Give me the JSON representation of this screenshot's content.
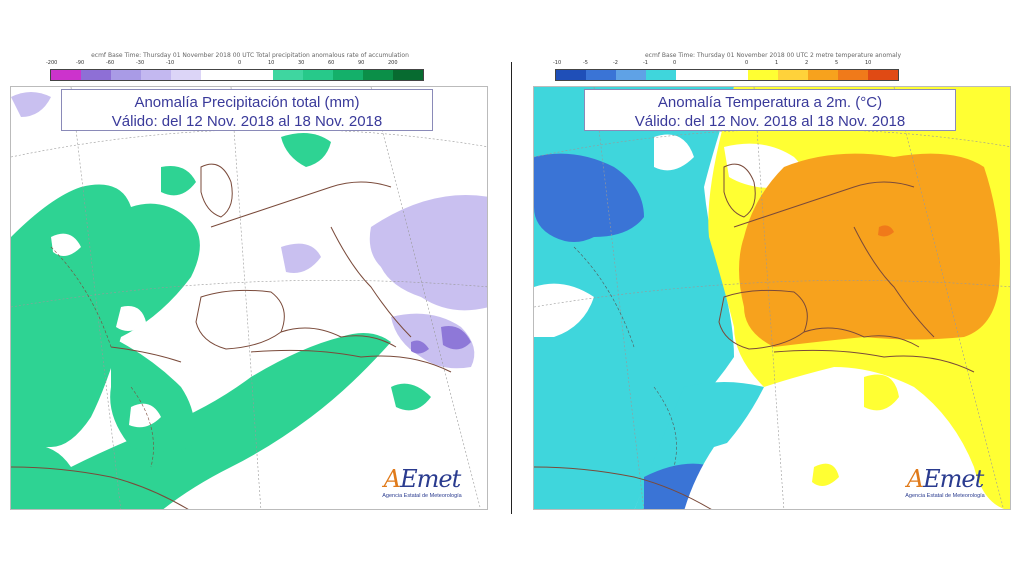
{
  "left_panel": {
    "header": "ecmf  Base Time: Thursday 01 November 2018 00 UTC  Total precipitation anomalous rate of accumulation",
    "title_line1": "Anomalía Precipitación total (mm)",
    "title_line2": "Válido: del 12 Nov. 2018 al 18 Nov. 2018",
    "scale_labels": [
      "-200",
      "-90",
      "-60",
      "-30",
      "-10",
      "0",
      "10",
      "30",
      "60",
      "90",
      "200"
    ],
    "scale_colors": [
      "#cc33cc",
      "#8e6fd6",
      "#a99be6",
      "#c3b8f0",
      "#dcd5f7",
      "#3fd6a0",
      "#27c98a",
      "#14b06a",
      "#0b8f48",
      "#076b30"
    ],
    "logo_text": "AEmet",
    "logo_subtitle": "Agencia Estatal de Meteorología"
  },
  "right_panel": {
    "header": "ecmf  Base Time: Thursday 01 November 2018 00 UTC  2 metre temperature anomaly",
    "title_line1": "Anomalía Temperatura a 2m. (°C)",
    "title_line2": "Válido: del 12 Nov. 2018 al 18 Nov. 2018",
    "scale_labels": [
      "-10",
      "-5",
      "-2",
      "-1",
      "0",
      "0",
      "1",
      "2",
      "5",
      "10"
    ],
    "scale_colors": [
      "#1f4fb8",
      "#3a74d6",
      "#5fa2e6",
      "#3fd6dc",
      "#ffff33",
      "#ffd23a",
      "#f7a21d",
      "#f07a1a",
      "#e04a14"
    ],
    "logo_text": "AEmet",
    "logo_subtitle": "Agencia Estatal de Meteorología"
  }
}
